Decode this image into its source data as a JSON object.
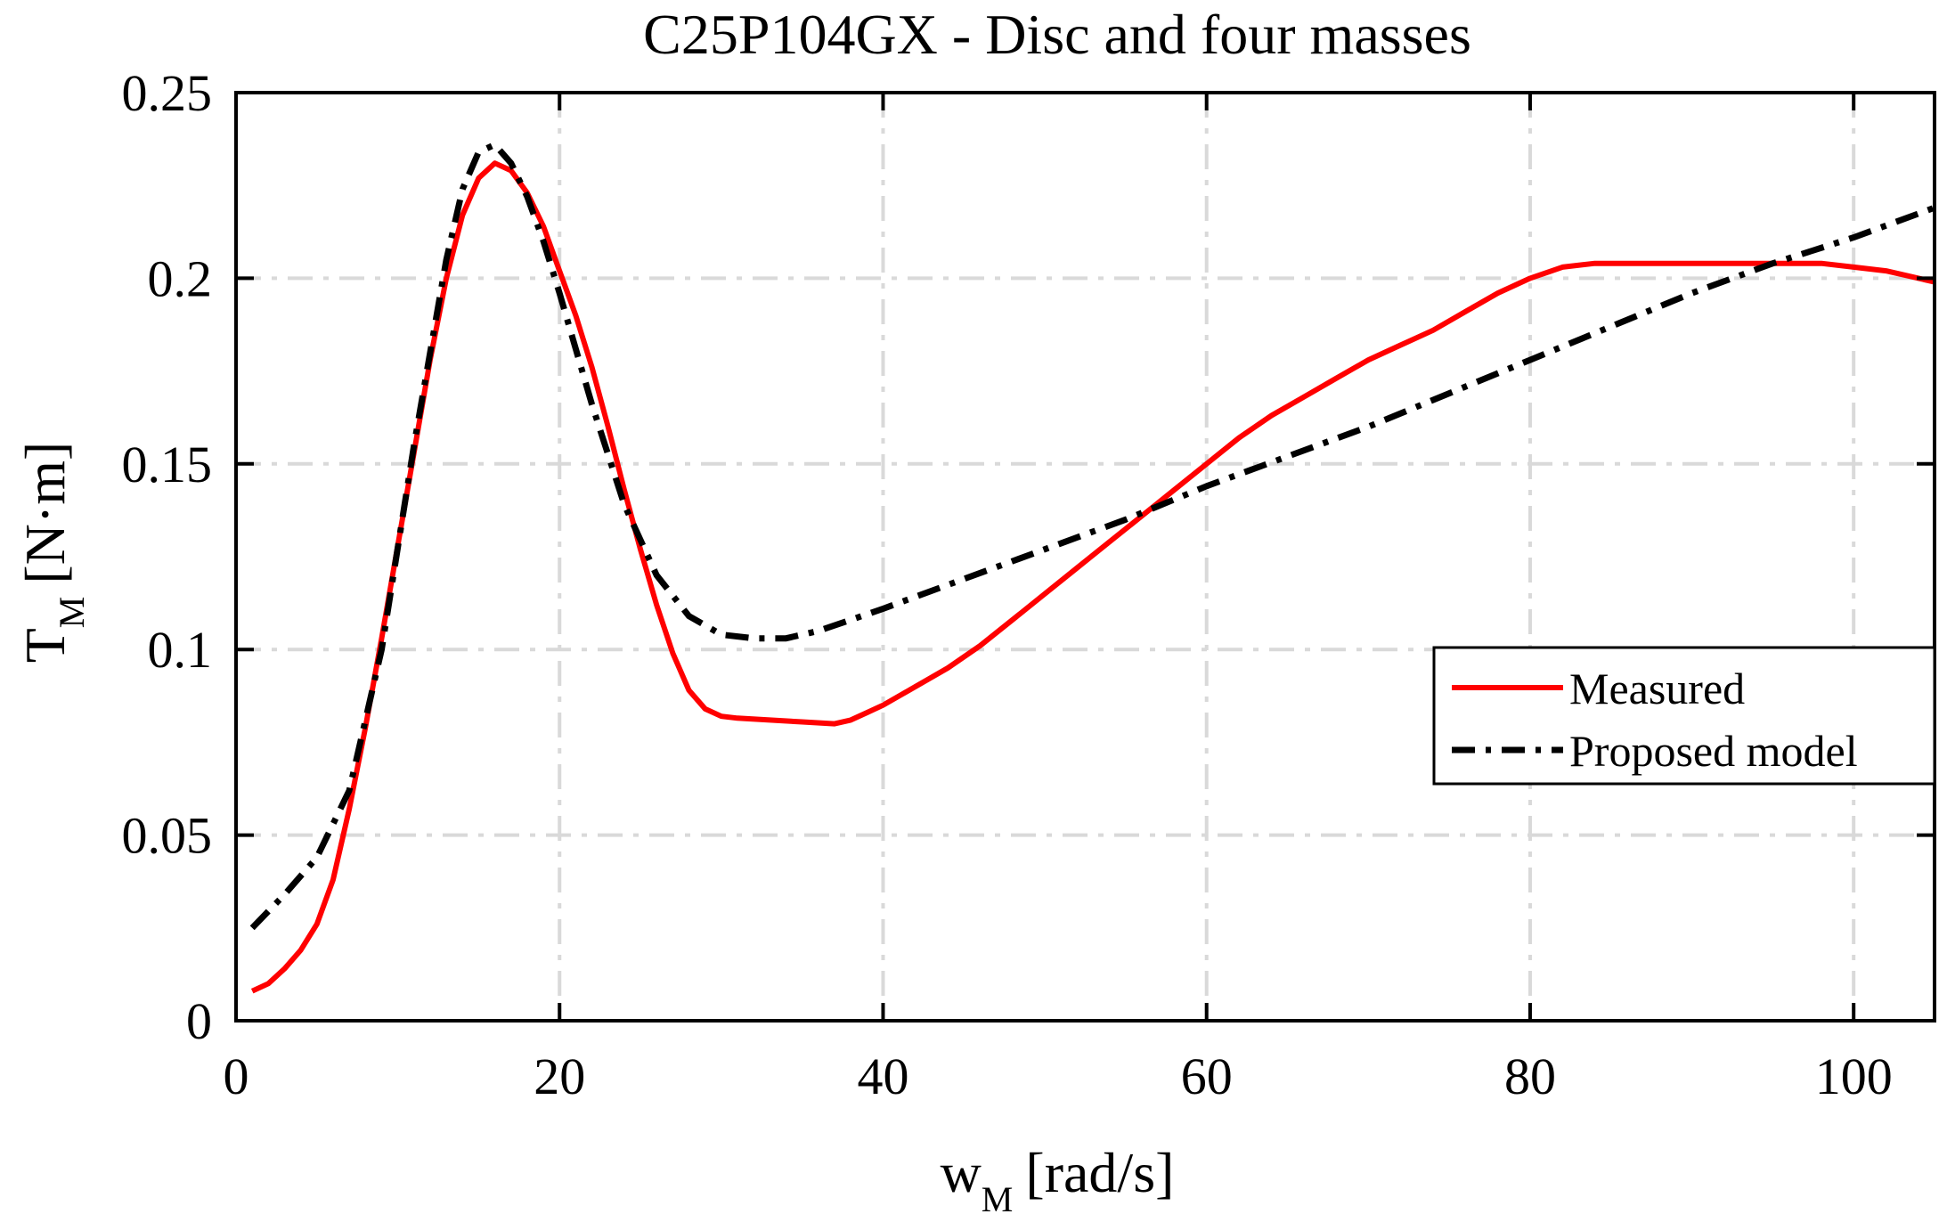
{
  "chart_data": {
    "type": "line",
    "title": "C25P104GX - Disc and four masses",
    "xlabel": "w",
    "xlabel_sub": "M",
    "xlabel_unit": "[rad/s]",
    "ylabel": "T",
    "ylabel_sub": "M",
    "ylabel_unit": "[N·m]",
    "xlim": [
      0,
      105
    ],
    "ylim": [
      0,
      0.25
    ],
    "xticks": [
      0,
      20,
      40,
      60,
      80,
      100
    ],
    "yticks": [
      0,
      0.05,
      0.1,
      0.15,
      0.2,
      0.25
    ],
    "xtick_labels": [
      "0",
      "20",
      "40",
      "60",
      "80",
      "100"
    ],
    "ytick_labels": [
      "0",
      "0.05",
      "0.1",
      "0.15",
      "0.2",
      "0.25"
    ],
    "grid": true,
    "legend_position": "right",
    "series": [
      {
        "name": "Measured",
        "color": "#ff0000",
        "style": "solid",
        "x": [
          1,
          2,
          3,
          4,
          5,
          6,
          7,
          8,
          9,
          10,
          11,
          12,
          13,
          14,
          15,
          16,
          17,
          18,
          19,
          20,
          21,
          22,
          23,
          24,
          25,
          26,
          27,
          28,
          29,
          30,
          31,
          33,
          35,
          37,
          38,
          39,
          40,
          42,
          44,
          46,
          48,
          50,
          52,
          54,
          56,
          58,
          60,
          62,
          64,
          66,
          68,
          70,
          72,
          74,
          76,
          78,
          80,
          82,
          84,
          86,
          88,
          90,
          92,
          94,
          96,
          98,
          100,
          102,
          105
        ],
        "y": [
          0.008,
          0.01,
          0.014,
          0.019,
          0.026,
          0.038,
          0.057,
          0.079,
          0.103,
          0.128,
          0.153,
          0.178,
          0.2,
          0.217,
          0.227,
          0.231,
          0.229,
          0.223,
          0.214,
          0.202,
          0.19,
          0.176,
          0.16,
          0.143,
          0.127,
          0.112,
          0.099,
          0.089,
          0.084,
          0.082,
          0.0815,
          0.081,
          0.0805,
          0.08,
          0.081,
          0.083,
          0.085,
          0.09,
          0.095,
          0.101,
          0.108,
          0.115,
          0.122,
          0.129,
          0.136,
          0.143,
          0.15,
          0.157,
          0.163,
          0.168,
          0.173,
          0.178,
          0.182,
          0.186,
          0.191,
          0.196,
          0.2,
          0.203,
          0.204,
          0.204,
          0.204,
          0.204,
          0.204,
          0.204,
          0.204,
          0.204,
          0.203,
          0.202,
          0.199
        ]
      },
      {
        "name": "Proposed model",
        "color": "#000000",
        "style": "dash-dot",
        "x": [
          1,
          3,
          5,
          7,
          9,
          11,
          13,
          14,
          15,
          16,
          17,
          18,
          19,
          20,
          22,
          24,
          26,
          28,
          30,
          32,
          34,
          36,
          38,
          40,
          45,
          50,
          55,
          60,
          65,
          70,
          75,
          80,
          85,
          90,
          95,
          100,
          105
        ],
        "y": [
          0.025,
          0.034,
          0.044,
          0.062,
          0.1,
          0.155,
          0.205,
          0.224,
          0.234,
          0.236,
          0.231,
          0.222,
          0.21,
          0.196,
          0.166,
          0.139,
          0.12,
          0.109,
          0.104,
          0.103,
          0.103,
          0.105,
          0.108,
          0.111,
          0.119,
          0.127,
          0.135,
          0.144,
          0.152,
          0.16,
          0.169,
          0.178,
          0.187,
          0.196,
          0.204,
          0.211,
          0.219
        ]
      }
    ]
  }
}
